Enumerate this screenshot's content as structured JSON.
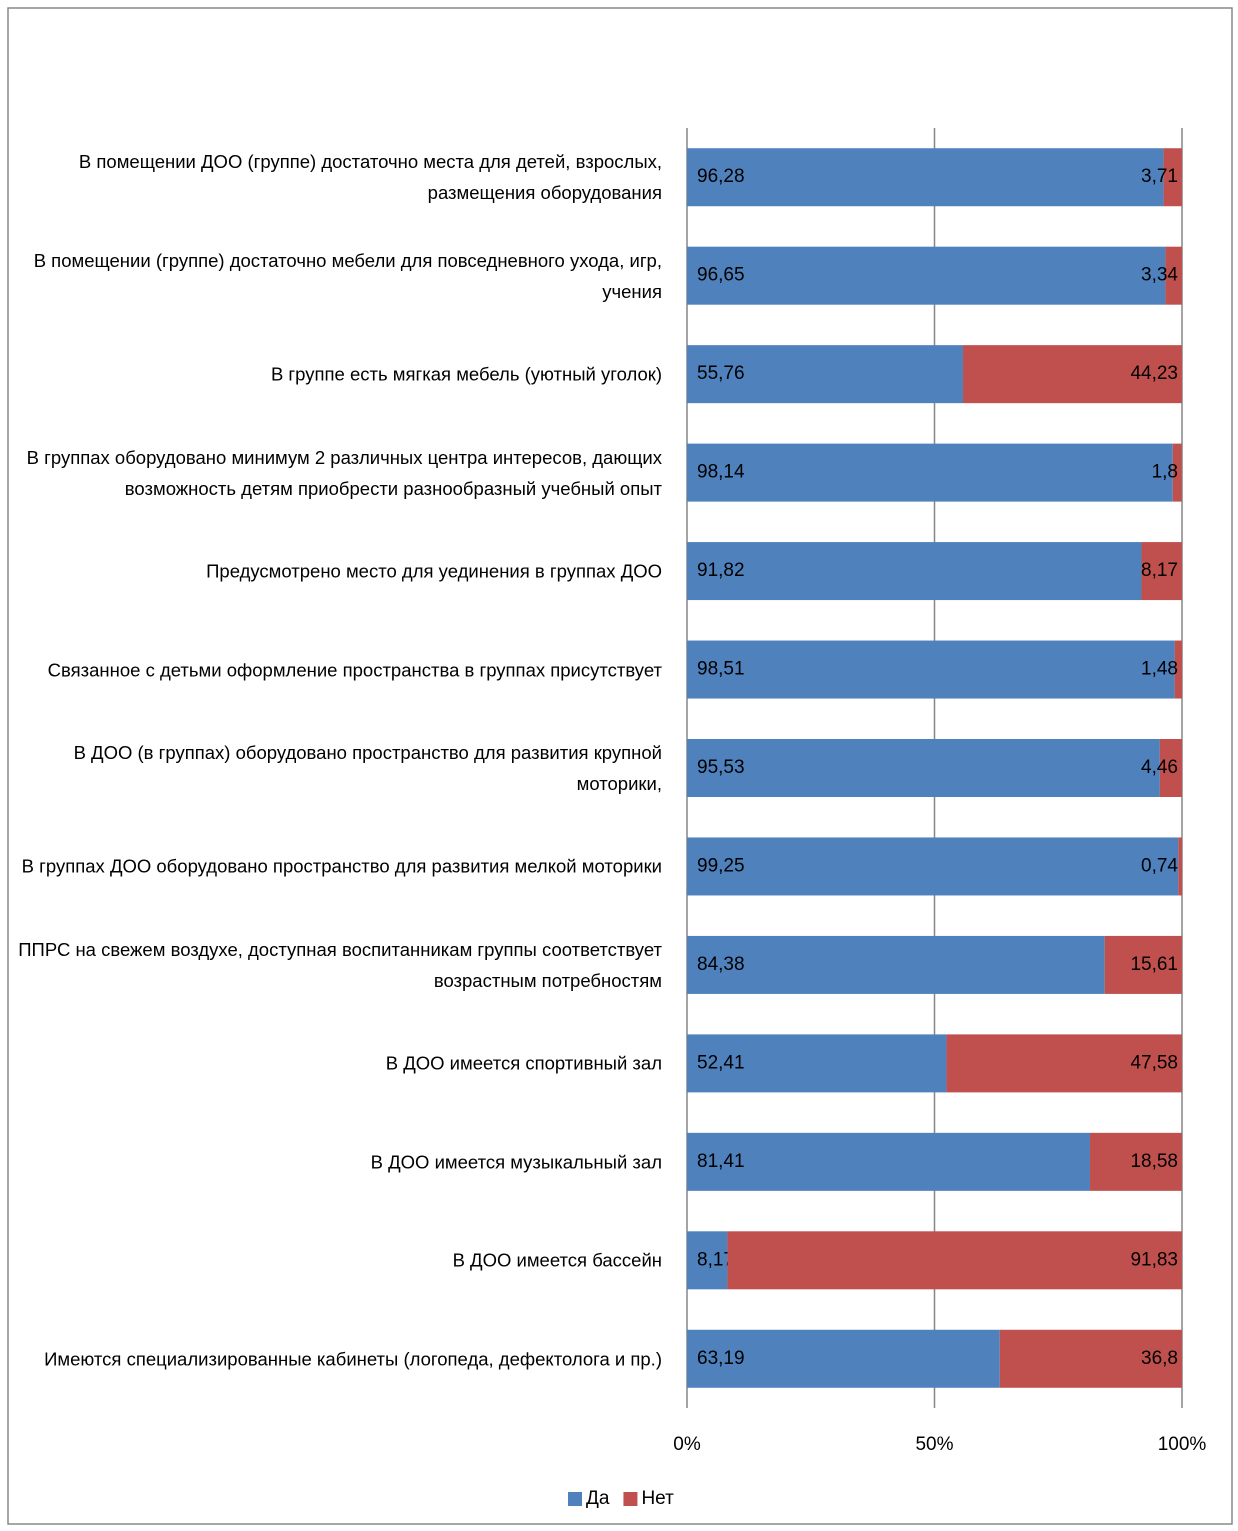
{
  "chart_data": {
    "type": "stacked_bar_100",
    "categories": [
      "В помещении ДОО (группе) достаточно места для детей, взрослых, размещения оборудования",
      "В помещении (группе) достаточно мебели для повседневного ухода, игр, учения",
      "В группе есть мягкая мебель (уютный уголок)",
      "В группах оборудовано минимум 2 различных центра интересов, дающих возможность детям приобрести разнообразный учебный опыт",
      "Предусмотрено место для уединения в группах ДОО",
      "Связанное с детьми оформление пространства в группах присутствует",
      "В ДОО (в группах) оборудовано пространство для развития крупной моторики,",
      "В группах ДОО оборудовано пространство для развития мелкой моторики",
      "ППРС на свежем воздухе, доступная воспитанникам группы соответствует возрастным потребностям",
      "В ДОО имеется спортивный зал",
      "В ДОО имеется музыкальный зал",
      "В ДОО имеется бассейн",
      "Имеются специализированные кабинеты (логопеда, дефектолога и пр.)"
    ],
    "series": [
      {
        "name": "Да",
        "color": "#4f81bd",
        "values": [
          96.28,
          96.65,
          55.76,
          98.14,
          91.82,
          98.51,
          95.53,
          99.25,
          84.38,
          52.41,
          81.41,
          8.17,
          63.19
        ],
        "value_labels": [
          "96,28",
          "96,65",
          "55,76",
          "98,14",
          "91,82",
          "98,51",
          "95,53",
          "99,25",
          "84,38",
          "52,41",
          "81,41",
          "8,17",
          "63,19"
        ]
      },
      {
        "name": "Нет",
        "color": "#c0504d",
        "values": [
          3.71,
          3.34,
          44.23,
          1.8,
          8.17,
          1.48,
          4.46,
          0.74,
          15.61,
          47.58,
          18.58,
          91.83,
          36.8
        ],
        "value_labels": [
          "3,71",
          "3,34",
          "44,23",
          "1,8",
          "8,17",
          "1,48",
          "4,46",
          "0,74",
          "15,61",
          "47,58",
          "18,58",
          "91,83",
          "36,8"
        ]
      }
    ],
    "xlim": [
      0,
      100
    ],
    "xticks": [
      {
        "value": 0,
        "label": "0%"
      },
      {
        "value": 50,
        "label": "50%"
      },
      {
        "value": 100,
        "label": "100%"
      }
    ],
    "grid": true,
    "legend": "bottom"
  }
}
